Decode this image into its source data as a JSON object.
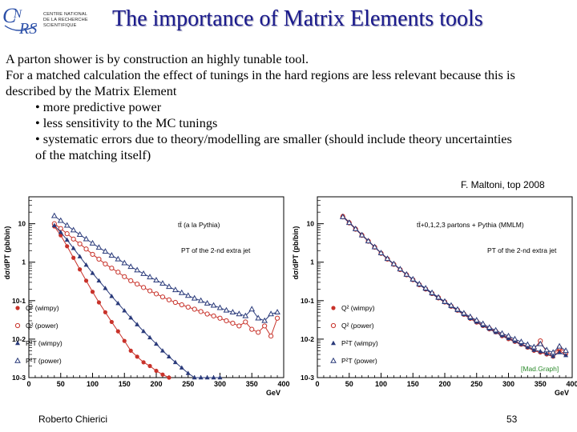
{
  "header": {
    "logo_letters": "CNRS",
    "logo_text": [
      "CENTRE NATIONAL",
      "DE LA RECHERCHE",
      "SCIENTIFIQUE"
    ],
    "title": "The importance of Matrix Elements tools"
  },
  "body": {
    "line1": "A parton shower is by construction an highly tunable tool.",
    "line2": "For a matched calculation the effect of tunings in the hard regions are less relevant because this is",
    "line3": "described by the Matrix Element",
    "bullet1": "• more predictive power",
    "bullet2": "• less sensitivity to the MC tunings",
    "bullet3": "• systematic errors due to theory/modelling are smaller (should include theory uncertainties",
    "bullet3b": "of the matching itself)"
  },
  "credit": "F. Maltoni, top 2008",
  "footer": {
    "author": "Roberto Chierici",
    "page": "53"
  },
  "colors": {
    "title": "#1a1a8c",
    "red": "#c8322a",
    "blue": "#2a3a7a"
  },
  "chart_data": [
    {
      "type": "scatter",
      "title": "",
      "xlabel": "GeV",
      "ylabel": "dσ/dPT (pb/bin)",
      "x_ticks": [
        "0",
        "50",
        "100",
        "150",
        "200",
        "250",
        "300",
        "350",
        "400"
      ],
      "y_ticks": [
        "10^-3",
        "10^-2",
        "10^-1",
        "1",
        "10"
      ],
      "xlim": [
        0,
        400
      ],
      "ylim_log10": [
        -3,
        1.7
      ],
      "log_y": true,
      "annotations": [
        "tt̄ (a la Pythia)",
        "PT of the 2-nd extra jet"
      ],
      "legend_position": "bottom-left",
      "series": [
        {
          "name": "Q² (wimpy)",
          "marker": "filled-circle",
          "color": "#c8322a",
          "x": [
            40,
            50,
            60,
            70,
            80,
            90,
            100,
            110,
            120,
            130,
            140,
            150,
            160,
            170,
            180,
            190,
            200,
            210,
            220
          ],
          "y": [
            8.5,
            5.0,
            2.6,
            1.3,
            0.65,
            0.33,
            0.17,
            0.09,
            0.05,
            0.028,
            0.016,
            0.009,
            0.005,
            0.0035,
            0.0025,
            0.002,
            0.0015,
            0.0012,
            0.001
          ]
        },
        {
          "name": "Q² (power)",
          "marker": "open-circle",
          "color": "#c8322a",
          "x": [
            40,
            50,
            60,
            70,
            80,
            90,
            100,
            110,
            120,
            130,
            140,
            150,
            160,
            170,
            180,
            190,
            200,
            210,
            220,
            230,
            240,
            250,
            260,
            270,
            280,
            290,
            300,
            310,
            320,
            330,
            340,
            350,
            360,
            370,
            380,
            390
          ],
          "y": [
            10,
            7.5,
            5.5,
            4.0,
            3.0,
            2.2,
            1.6,
            1.2,
            0.9,
            0.7,
            0.55,
            0.42,
            0.33,
            0.27,
            0.22,
            0.18,
            0.15,
            0.125,
            0.105,
            0.09,
            0.078,
            0.068,
            0.06,
            0.052,
            0.045,
            0.04,
            0.035,
            0.03,
            0.026,
            0.022,
            0.028,
            0.018,
            0.015,
            0.022,
            0.012,
            0.035
          ]
        },
        {
          "name": "P²T (wimpy)",
          "marker": "filled-triangle",
          "color": "#2a3a7a",
          "x": [
            40,
            50,
            60,
            70,
            80,
            90,
            100,
            110,
            120,
            130,
            140,
            150,
            160,
            170,
            180,
            190,
            200,
            210,
            220,
            230,
            240,
            250,
            260,
            270,
            280,
            290,
            300
          ],
          "y": [
            9,
            6.0,
            3.8,
            2.3,
            1.4,
            0.85,
            0.52,
            0.33,
            0.21,
            0.13,
            0.085,
            0.055,
            0.036,
            0.024,
            0.016,
            0.011,
            0.0075,
            0.005,
            0.0035,
            0.0025,
            0.0018,
            0.0013,
            0.001,
            0.001,
            0.001,
            0.001,
            0.001
          ]
        },
        {
          "name": "P²T (power)",
          "marker": "open-triangle",
          "color": "#2a3a7a",
          "x": [
            40,
            50,
            60,
            70,
            80,
            90,
            100,
            110,
            120,
            130,
            140,
            150,
            160,
            170,
            180,
            190,
            200,
            210,
            220,
            230,
            240,
            250,
            260,
            270,
            280,
            290,
            300,
            310,
            320,
            330,
            340,
            350,
            360,
            370,
            380,
            390
          ],
          "y": [
            16,
            12,
            9.0,
            6.8,
            5.2,
            4.0,
            3.1,
            2.4,
            1.9,
            1.5,
            1.2,
            0.95,
            0.76,
            0.62,
            0.5,
            0.41,
            0.34,
            0.28,
            0.23,
            0.19,
            0.16,
            0.135,
            0.115,
            0.1,
            0.085,
            0.075,
            0.065,
            0.056,
            0.05,
            0.045,
            0.04,
            0.06,
            0.035,
            0.03,
            0.045,
            0.05
          ]
        }
      ]
    },
    {
      "type": "scatter",
      "title": "",
      "xlabel": "GeV",
      "ylabel": "dσ/dPT (pb/bin)",
      "x_ticks": [
        "0",
        "50",
        "100",
        "150",
        "200",
        "250",
        "300",
        "350",
        "400"
      ],
      "y_ticks": [
        "10^-3",
        "10^-2",
        "10^-1",
        "1",
        "10"
      ],
      "xlim": [
        0,
        400
      ],
      "ylim_log10": [
        -3,
        1.7
      ],
      "log_y": true,
      "annotations": [
        "tt̄+0,1,2,3 partons + Pythia (MMLM)",
        "PT of the 2-nd extra jet",
        "[Mad.Graph]"
      ],
      "legend_position": "bottom-left",
      "series": [
        {
          "name": "Q² (wimpy)",
          "marker": "filled-circle",
          "color": "#c8322a",
          "x": [
            40,
            50,
            60,
            70,
            80,
            90,
            100,
            110,
            120,
            130,
            140,
            150,
            160,
            170,
            180,
            190,
            200,
            210,
            220,
            230,
            240,
            250,
            260,
            270,
            280,
            290,
            300,
            310,
            320,
            330,
            340,
            350,
            360,
            370,
            380,
            390
          ],
          "y": [
            16,
            11,
            7.5,
            5.2,
            3.6,
            2.5,
            1.75,
            1.25,
            0.9,
            0.65,
            0.48,
            0.35,
            0.26,
            0.2,
            0.15,
            0.115,
            0.09,
            0.07,
            0.055,
            0.043,
            0.034,
            0.027,
            0.022,
            0.018,
            0.015,
            0.012,
            0.01,
            0.0085,
            0.0072,
            0.006,
            0.005,
            0.0045,
            0.004,
            0.0035,
            0.005,
            0.004
          ]
        },
        {
          "name": "Q² (power)",
          "marker": "open-circle",
          "color": "#c8322a",
          "x": [
            40,
            50,
            60,
            70,
            80,
            90,
            100,
            110,
            120,
            130,
            140,
            150,
            160,
            170,
            180,
            190,
            200,
            210,
            220,
            230,
            240,
            250,
            260,
            270,
            280,
            290,
            300,
            310,
            320,
            330,
            340,
            350,
            360,
            370,
            380,
            390
          ],
          "y": [
            15,
            10.5,
            7.2,
            5.0,
            3.5,
            2.45,
            1.7,
            1.2,
            0.88,
            0.64,
            0.47,
            0.35,
            0.26,
            0.2,
            0.155,
            0.12,
            0.093,
            0.072,
            0.057,
            0.045,
            0.036,
            0.029,
            0.023,
            0.019,
            0.016,
            0.013,
            0.011,
            0.009,
            0.0075,
            0.0065,
            0.0055,
            0.009,
            0.0045,
            0.004,
            0.006,
            0.0045
          ]
        },
        {
          "name": "P²T (wimpy)",
          "marker": "filled-triangle",
          "color": "#2a3a7a",
          "x": [
            40,
            50,
            60,
            70,
            80,
            90,
            100,
            110,
            120,
            130,
            140,
            150,
            160,
            170,
            180,
            190,
            200,
            210,
            220,
            230,
            240,
            250,
            260,
            270,
            280,
            290,
            300,
            310,
            320,
            330,
            340,
            350,
            360,
            370,
            380,
            390
          ],
          "y": [
            15.5,
            10.8,
            7.4,
            5.1,
            3.55,
            2.48,
            1.72,
            1.22,
            0.89,
            0.65,
            0.47,
            0.35,
            0.26,
            0.2,
            0.152,
            0.117,
            0.091,
            0.071,
            0.056,
            0.044,
            0.035,
            0.028,
            0.0225,
            0.0185,
            0.0152,
            0.0125,
            0.0105,
            0.0088,
            0.0074,
            0.0062,
            0.0052,
            0.0048,
            0.0042,
            0.0036,
            0.0045,
            0.0038
          ]
        },
        {
          "name": "P²T (power)",
          "marker": "open-triangle",
          "color": "#2a3a7a",
          "x": [
            40,
            50,
            60,
            70,
            80,
            90,
            100,
            110,
            120,
            130,
            140,
            150,
            160,
            170,
            180,
            190,
            200,
            210,
            220,
            230,
            240,
            250,
            260,
            270,
            280,
            290,
            300,
            310,
            320,
            330,
            340,
            350,
            360,
            370,
            380,
            390
          ],
          "y": [
            15,
            10.6,
            7.3,
            5.05,
            3.52,
            2.47,
            1.73,
            1.23,
            0.9,
            0.66,
            0.48,
            0.36,
            0.27,
            0.21,
            0.16,
            0.122,
            0.095,
            0.075,
            0.059,
            0.047,
            0.038,
            0.031,
            0.025,
            0.02,
            0.017,
            0.014,
            0.012,
            0.01,
            0.0085,
            0.0072,
            0.0062,
            0.0075,
            0.0052,
            0.0045,
            0.0065,
            0.005
          ]
        }
      ]
    }
  ]
}
